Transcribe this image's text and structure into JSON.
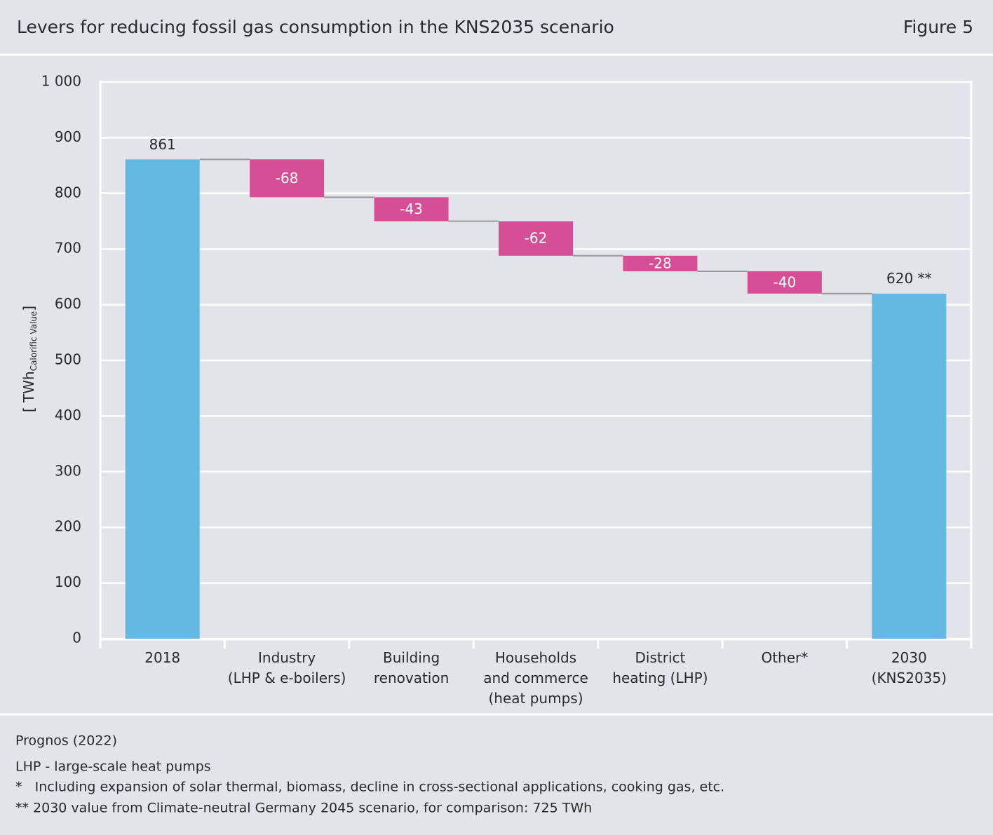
{
  "chart_data": {
    "type": "waterfall",
    "title": "Levers for reducing fossil gas consumption in the KNS2035 scenario",
    "figure_label": "Figure 5",
    "ylabel": [
      "[ TWh",
      "Calorific Value",
      "]"
    ],
    "categories": [
      [
        "2018"
      ],
      [
        "Industry",
        "(LHP & e-boilers)"
      ],
      [
        "Building",
        "renovation"
      ],
      [
        "Households",
        "and commerce",
        "(heat pumps)"
      ],
      [
        "District",
        "heating (LHP)"
      ],
      [
        "Other*"
      ],
      [
        "2030",
        "(KNS2035)"
      ]
    ],
    "values": [
      861,
      -68,
      -43,
      -62,
      -28,
      -40,
      620
    ],
    "value_labels": [
      "861",
      "-68",
      "-43",
      "-62",
      "-28",
      "-40",
      "620 **"
    ],
    "measure": [
      "absolute",
      "relative",
      "relative",
      "relative",
      "relative",
      "relative",
      "absolute"
    ],
    "colors": {
      "absolute": "#64b9e2",
      "relative": "#d44f94"
    },
    "ylim": [
      0,
      1000
    ],
    "yticks": [
      0,
      100,
      200,
      300,
      400,
      500,
      600,
      700,
      800,
      900,
      {
        "value": 1000,
        "label": "1 000"
      }
    ],
    "grid": true
  },
  "notes": [
    "Prognos (2022)",
    "LHP - large-scale heat pumps",
    "*   Including expansion of solar thermal, biomass, decline in cross-sectional applications, cooking gas, etc.",
    "** 2030 value from Climate-neutral Germany 2045 scenario, for comparison: 725 TWh"
  ]
}
